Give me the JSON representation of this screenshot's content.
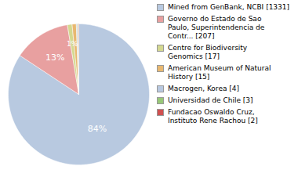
{
  "chart_data": {
    "type": "pie",
    "categories": [
      "Mined from GenBank, NCBI [1331]",
      "Governo do Estado de Sao\nPaulo, Superintendencia de\nContr... [207]",
      "Centre for Biodiversity\nGenomics [17]",
      "American Museum of Natural\nHistory [15]",
      "Macrogen, Korea [4]",
      "Universidad de Chile [3]",
      "Fundacao Oswaldo Cruz,\nInstituto Rene Rachou [2]"
    ],
    "values": [
      84.29,
      13.11,
      1.08,
      0.95,
      0.25,
      0.19,
      0.13
    ],
    "value_labels": [
      "84%",
      "13%",
      "1%",
      null,
      null,
      null,
      null
    ],
    "data_labels": true,
    "colors": [
      "#b8c9e0",
      "#e8a0a0",
      "#d4d890",
      "#e8b870",
      "#b8c8e0",
      "#98c878",
      "#d05050"
    ],
    "legend": "right"
  }
}
